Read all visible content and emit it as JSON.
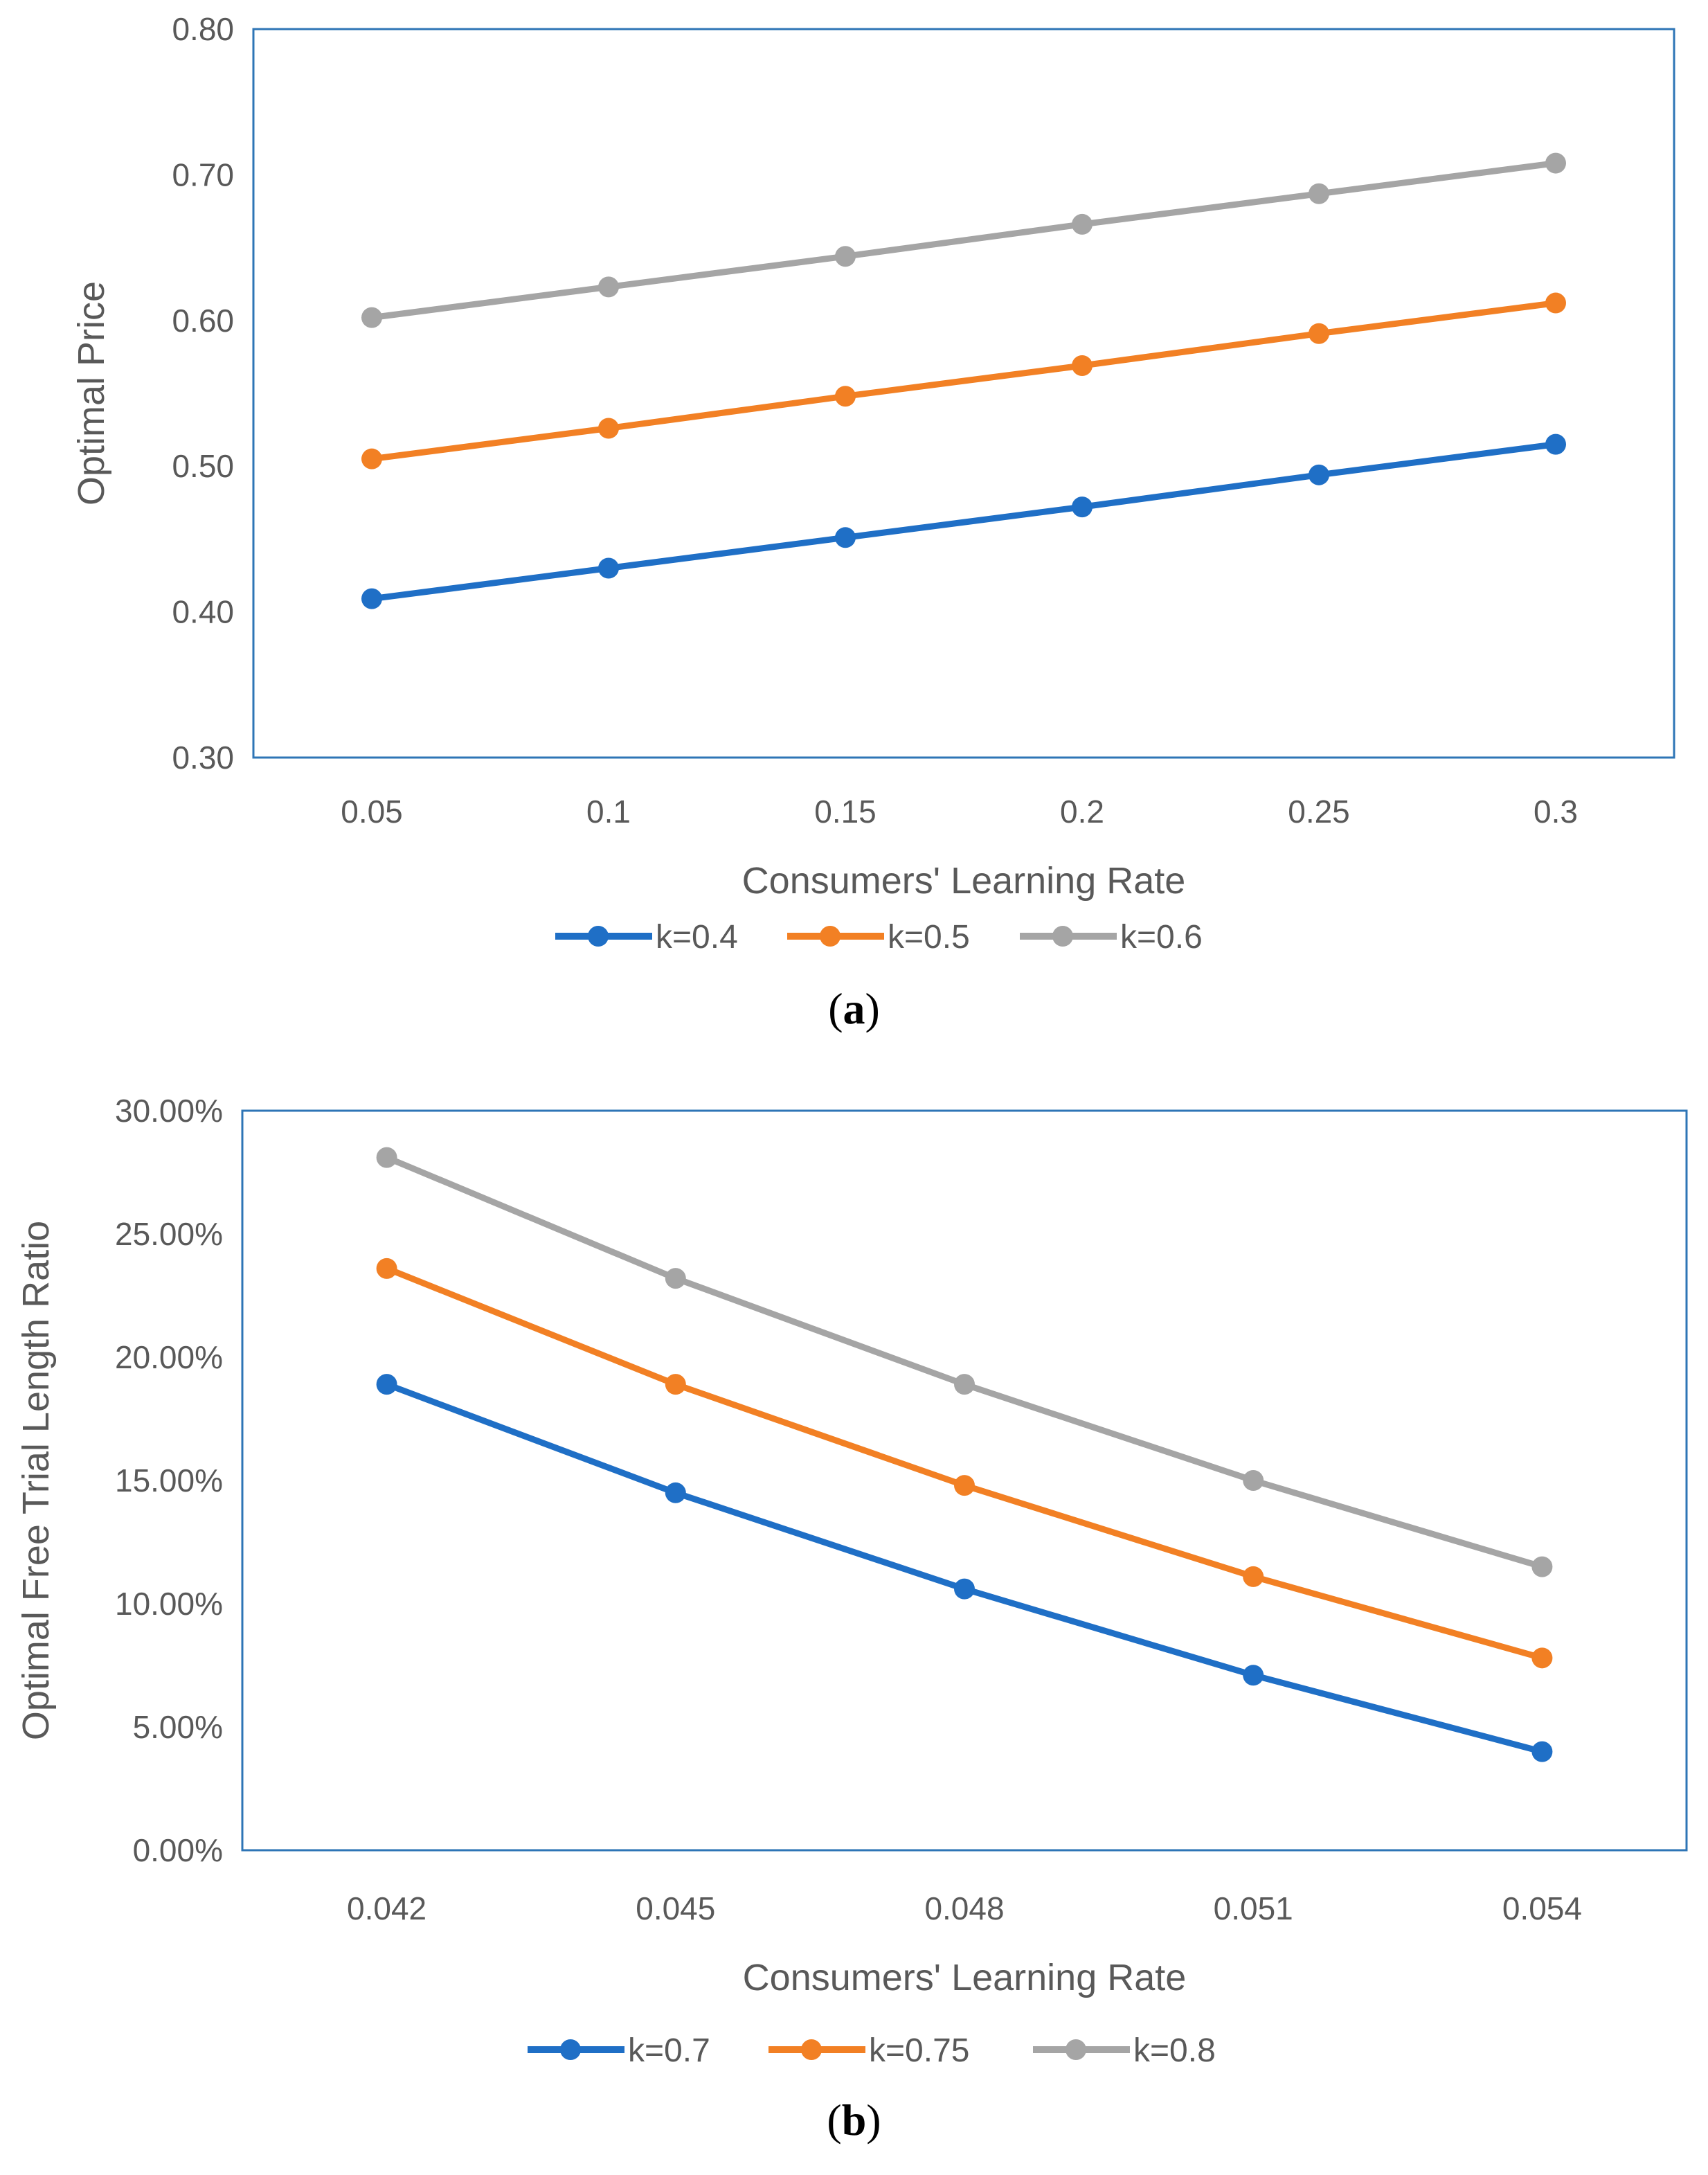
{
  "chart_data": [
    {
      "type": "line",
      "title": "",
      "xlabel": "Consumers' Learning Rate",
      "ylabel": "Optimal Price",
      "categories": [
        "0.05",
        "0.1",
        "0.15",
        "0.2",
        "0.25",
        "0.3"
      ],
      "y_ticks": [
        "0.30",
        "0.40",
        "0.50",
        "0.60",
        "0.70",
        "0.80"
      ],
      "ylim": [
        0.3,
        0.8
      ],
      "grid": false,
      "legend_position": "bottom",
      "series": [
        {
          "name": "k=0.4",
          "color": "#1f6fc6",
          "values": [
            0.409,
            0.43,
            0.451,
            0.472,
            0.494,
            0.515
          ]
        },
        {
          "name": "k=0.5",
          "color": "#f28024",
          "values": [
            0.505,
            0.526,
            0.548,
            0.569,
            0.591,
            0.612
          ]
        },
        {
          "name": "k=0.6",
          "color": "#a5a5a5",
          "values": [
            0.602,
            0.623,
            0.644,
            0.666,
            0.687,
            0.708
          ]
        }
      ],
      "caption_open": "(",
      "caption_letter": "a",
      "caption_close": ")"
    },
    {
      "type": "line",
      "title": "",
      "xlabel": "Consumers' Learning Rate",
      "ylabel": "Optimal Free Trial Length Ratio",
      "categories": [
        "0.042",
        "0.045",
        "0.048",
        "0.051",
        "0.054"
      ],
      "y_ticks": [
        "0.00%",
        "5.00%",
        "10.00%",
        "15.00%",
        "20.00%",
        "25.00%",
        "30.00%"
      ],
      "ylim": [
        0,
        30
      ],
      "grid": false,
      "legend_position": "bottom",
      "series": [
        {
          "name": "k=0.7",
          "color": "#1f6fc6",
          "values": [
            18.9,
            14.5,
            10.6,
            7.1,
            4.0
          ]
        },
        {
          "name": "k=0.75",
          "color": "#f28024",
          "values": [
            23.6,
            18.9,
            14.8,
            11.1,
            7.8
          ]
        },
        {
          "name": "k=0.8",
          "color": "#a5a5a5",
          "values": [
            28.1,
            23.2,
            18.9,
            15.0,
            11.5
          ]
        }
      ],
      "caption_open": "(",
      "caption_letter": "b",
      "caption_close": ")"
    }
  ]
}
